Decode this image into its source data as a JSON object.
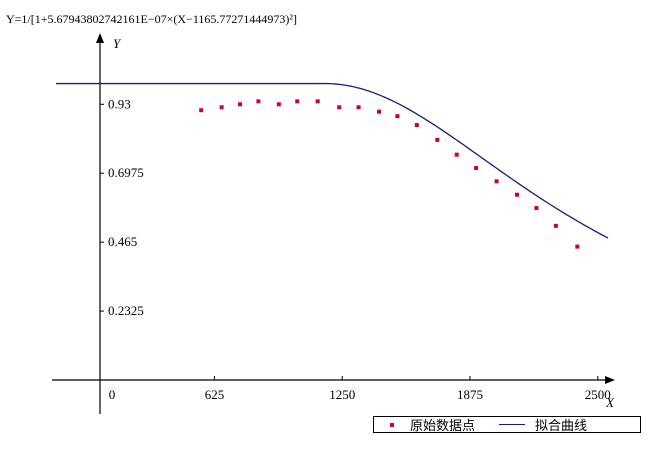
{
  "formula": "Y=1/[1+5.67943802742161E−07×(X−1165.77271444973)²]",
  "chart_data": {
    "type": "scatter",
    "title": "",
    "xlabel": "X",
    "ylabel": "Y",
    "xlim": [
      -150,
      2550
    ],
    "ylim": [
      -0.1,
      1.13
    ],
    "x_ticks": [
      0,
      625,
      1250,
      1875,
      2500
    ],
    "x_tick_labels": [
      "0",
      "625",
      "1250",
      "1875",
      "2500"
    ],
    "y_ticks": [
      0.2325,
      0.465,
      0.6975,
      0.93
    ],
    "y_tick_labels": [
      "0.2325",
      "0.465",
      "0.6975",
      "0.93"
    ],
    "series": [
      {
        "name": "原始数据点",
        "kind": "points",
        "color": "#cc0033",
        "x": [
          560,
          660,
          750,
          840,
          940,
          1030,
          1130,
          1235,
          1330,
          1430,
          1520,
          1615,
          1715,
          1810,
          1905,
          2005,
          2105,
          2200,
          2295,
          2400
        ],
        "y": [
          0.91,
          0.92,
          0.93,
          0.94,
          0.93,
          0.94,
          0.94,
          0.92,
          0.92,
          0.905,
          0.89,
          0.86,
          0.81,
          0.76,
          0.715,
          0.67,
          0.625,
          0.58,
          0.52,
          0.45
        ]
      },
      {
        "name": "拟合曲线",
        "kind": "line",
        "color": "#1a1a80",
        "formula": {
          "type": "lorentz",
          "a": 5.67943802742161e-07,
          "x0": 1165.77271444973
        },
        "x_range": [
          -150,
          2550
        ],
        "flat_before_x0": true
      }
    ],
    "legend": "bottom-right",
    "grid": false
  }
}
